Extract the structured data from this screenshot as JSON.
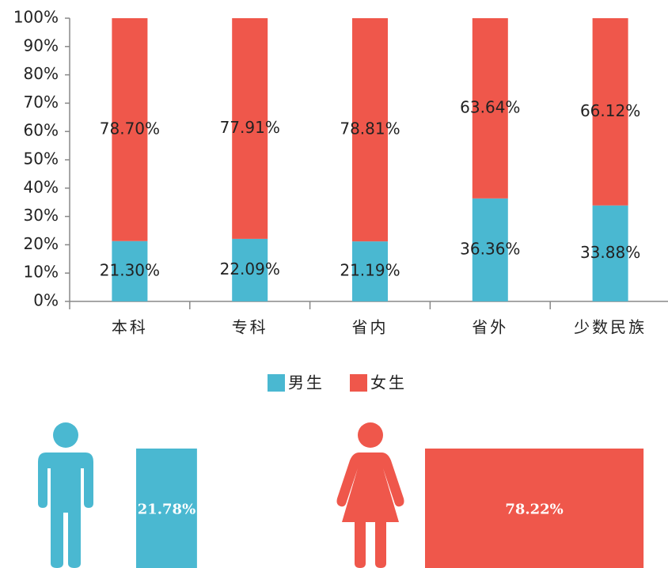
{
  "chart_data": [
    {
      "type": "stacked_bar",
      "categories": [
        "本科",
        "专科",
        "省内",
        "省外",
        "少数民族"
      ],
      "series": [
        {
          "name": "男生",
          "color": "#4ab8d1",
          "values": [
            21.3,
            22.09,
            21.19,
            36.36,
            33.88
          ],
          "value_labels": [
            "21.30%",
            "22.09%",
            "21.19%",
            "36.36%",
            "33.88%"
          ]
        },
        {
          "name": "女生",
          "color": "#ef574b",
          "values": [
            78.7,
            77.91,
            78.81,
            63.64,
            66.12
          ],
          "value_labels": [
            "78.70%",
            "77.91%",
            "78.81%",
            "63.64%",
            "66.12%"
          ]
        }
      ],
      "ylim": [
        0,
        100
      ],
      "yticks": [
        {
          "value": 0,
          "label": "0%"
        },
        {
          "value": 10,
          "label": "10%"
        },
        {
          "value": 20,
          "label": "20%"
        },
        {
          "value": 30,
          "label": "30%"
        },
        {
          "value": 40,
          "label": "40%"
        },
        {
          "value": 50,
          "label": "50%"
        },
        {
          "value": 60,
          "label": "60%"
        },
        {
          "value": 70,
          "label": "70%"
        },
        {
          "value": 80,
          "label": "80%"
        },
        {
          "value": 90,
          "label": "90%"
        },
        {
          "value": 100,
          "label": "100%"
        }
      ],
      "legend": "bottom"
    },
    {
      "type": "bar",
      "values": [
        21.78,
        78.22
      ],
      "value_labels": [
        "21.78%",
        "78.22%"
      ],
      "colors": [
        "#4ab8d1",
        "#ef574b"
      ]
    }
  ]
}
